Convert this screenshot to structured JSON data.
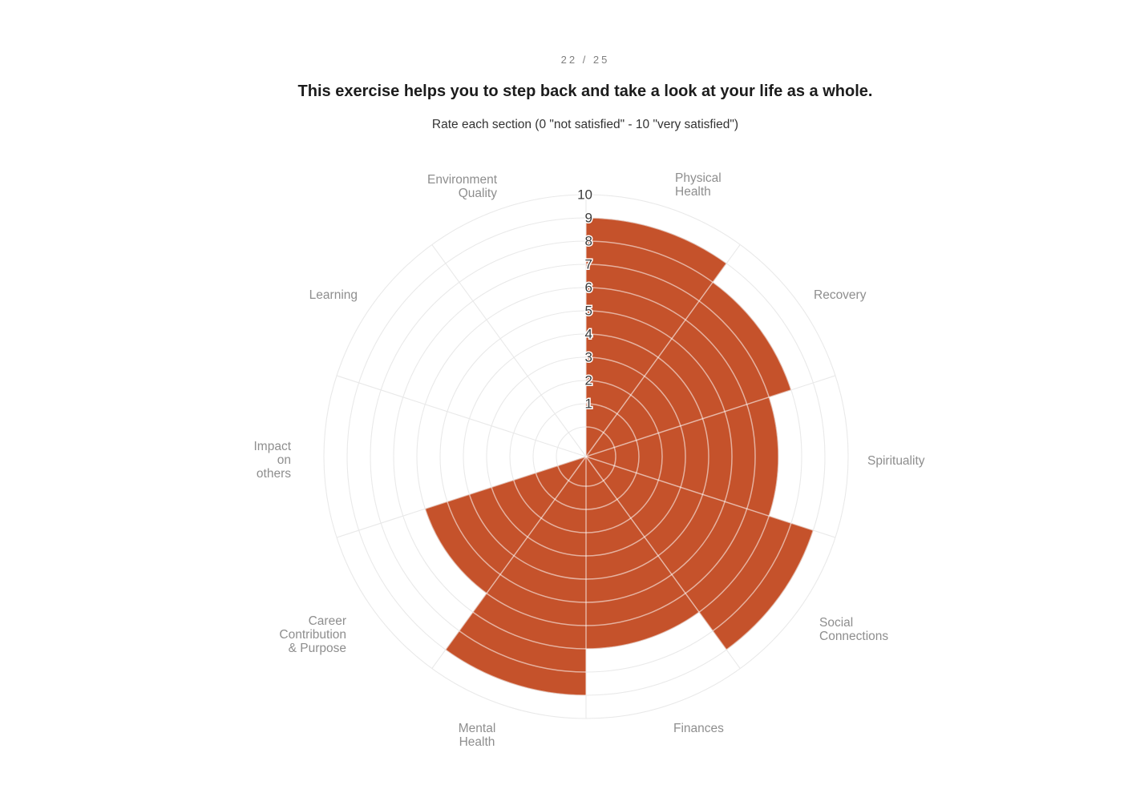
{
  "page": {
    "indicator": "22 / 25",
    "title": "This exercise helps you to step back and take a look at your life as a whole.",
    "subtitle": "Rate each section (0 \"not satisfied\" - 10 \"very satisfied\")"
  },
  "chart_data": {
    "type": "polar_area",
    "direction": "clockwise",
    "start_angle_deg": 0,
    "axis": {
      "min": 0,
      "max": 10,
      "tick_labels": [
        "1",
        "2",
        "3",
        "4",
        "5",
        "6",
        "7",
        "8",
        "9",
        "10"
      ],
      "grid": true
    },
    "categories": [
      {
        "label": "Physical Health",
        "lines": [
          "Physical",
          "Health"
        ],
        "value": 9
      },
      {
        "label": "Recovery",
        "lines": [
          "Recovery"
        ],
        "value": 8
      },
      {
        "label": "Spirituality",
        "lines": [
          "Spirituality"
        ],
        "value": 7
      },
      {
        "label": "Social Connections",
        "lines": [
          "Social",
          "Connections"
        ],
        "value": 9
      },
      {
        "label": "Finances",
        "lines": [
          "Finances"
        ],
        "value": 7
      },
      {
        "label": "Mental Health",
        "lines": [
          "Mental",
          "Health"
        ],
        "value": 9
      },
      {
        "label": "Career Contribution & Purpose",
        "lines": [
          "Career",
          "Contribution",
          "& Purpose"
        ],
        "value": 6
      },
      {
        "label": "Impact on others",
        "lines": [
          "Impact",
          "on",
          "others"
        ],
        "value": 0
      },
      {
        "label": "Learning",
        "lines": [
          "Learning"
        ],
        "value": 0
      },
      {
        "label": "Environment Quality",
        "lines": [
          "Environment",
          "Quality"
        ],
        "value": 0
      }
    ],
    "colors": {
      "fill": "#C5522B",
      "grid": "#E9E9E9",
      "grid_over_fill": "rgba(255,255,255,0.55)",
      "category_label": "#8E8E8E",
      "tick_label": "#3C3C3C"
    }
  }
}
